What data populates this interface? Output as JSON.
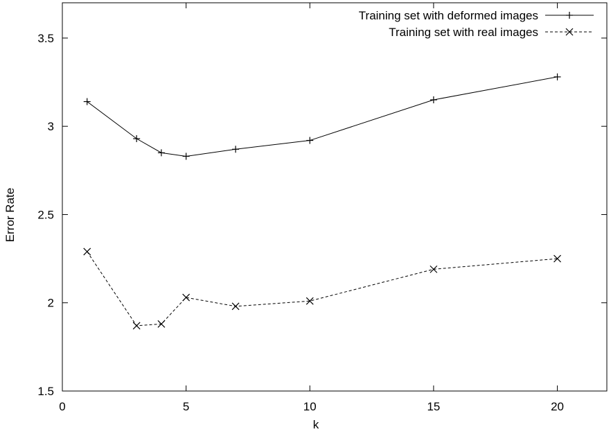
{
  "chart_data": {
    "type": "line",
    "title": "",
    "xlabel": "k",
    "ylabel": "Error Rate",
    "xlim": [
      0,
      22
    ],
    "ylim": [
      1.5,
      3.7
    ],
    "xticks": [
      0,
      5,
      10,
      15,
      20
    ],
    "yticks": [
      1.5,
      2,
      2.5,
      3,
      3.5
    ],
    "xtick_labels": [
      "0",
      "5",
      "10",
      "15",
      "20"
    ],
    "ytick_labels": [
      "1.5",
      "2",
      "2.5",
      "3",
      "3.5"
    ],
    "grid": false,
    "legend_position": "top-right",
    "series": [
      {
        "name": "Training set with deformed images",
        "line_style": "solid",
        "marker": "plus",
        "x": [
          1,
          3,
          4,
          5,
          7,
          10,
          15,
          20
        ],
        "y": [
          3.14,
          2.93,
          2.85,
          2.83,
          2.87,
          2.92,
          3.15,
          3.28
        ]
      },
      {
        "name": "Training set with real images",
        "line_style": "dashed",
        "marker": "cross",
        "x": [
          1,
          3,
          4,
          5,
          7,
          10,
          15,
          20
        ],
        "y": [
          2.29,
          1.87,
          1.88,
          2.03,
          1.98,
          2.01,
          2.19,
          2.25
        ]
      }
    ]
  }
}
